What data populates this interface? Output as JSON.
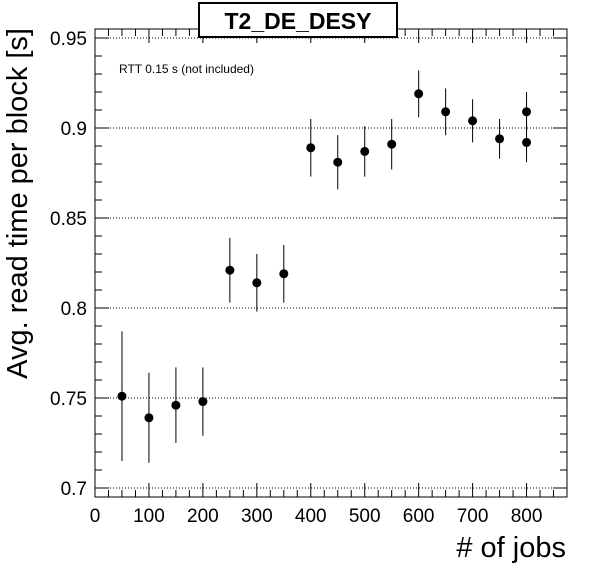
{
  "chart_data": {
    "type": "scatter",
    "title": "T2_DE_DESY",
    "xlabel": "# of jobs",
    "ylabel": "Avg. read time per block [s]",
    "annotation": "RTT 0.15 s (not included)",
    "xlim": [
      0,
      875
    ],
    "ylim": [
      0.695,
      0.955
    ],
    "xticks": [
      "0",
      "100",
      "200",
      "300",
      "400",
      "500",
      "600",
      "700",
      "800"
    ],
    "yticks": [
      "0.7",
      "0.75",
      "0.8",
      "0.85",
      "0.9",
      "0.95"
    ],
    "grid": "horizontal dotted",
    "points": [
      {
        "x": 50,
        "y": 0.751,
        "err": 0.036
      },
      {
        "x": 100,
        "y": 0.739,
        "err": 0.025
      },
      {
        "x": 150,
        "y": 0.746,
        "err": 0.021
      },
      {
        "x": 200,
        "y": 0.748,
        "err": 0.019
      },
      {
        "x": 250,
        "y": 0.821,
        "err": 0.018
      },
      {
        "x": 300,
        "y": 0.814,
        "err": 0.016
      },
      {
        "x": 350,
        "y": 0.819,
        "err": 0.016
      },
      {
        "x": 400,
        "y": 0.889,
        "err": 0.016
      },
      {
        "x": 450,
        "y": 0.881,
        "err": 0.015
      },
      {
        "x": 500,
        "y": 0.887,
        "err": 0.014
      },
      {
        "x": 550,
        "y": 0.891,
        "err": 0.014
      },
      {
        "x": 600,
        "y": 0.919,
        "err": 0.013
      },
      {
        "x": 650,
        "y": 0.909,
        "err": 0.013
      },
      {
        "x": 700,
        "y": 0.904,
        "err": 0.012
      },
      {
        "x": 750,
        "y": 0.894,
        "err": 0.011
      },
      {
        "x": 800,
        "y": 0.892,
        "err": 0.011
      },
      {
        "x": 800,
        "y": 0.909,
        "err": 0.011
      }
    ],
    "colors": {
      "marker": "#000000",
      "grid": "#000000",
      "background": "#ffffff"
    }
  }
}
